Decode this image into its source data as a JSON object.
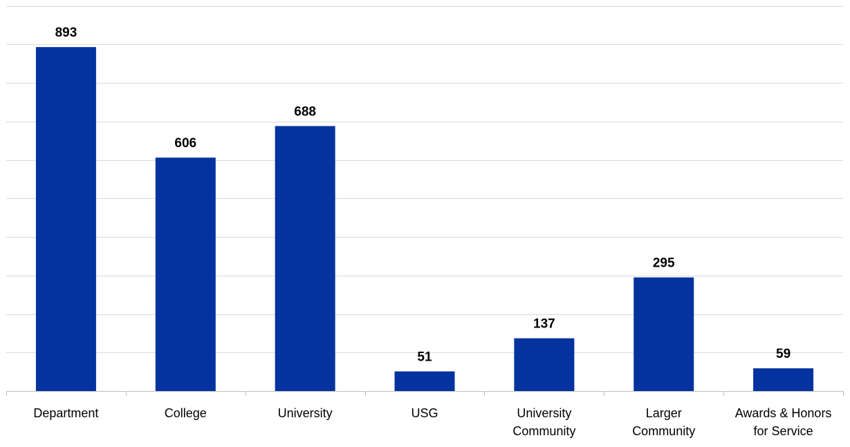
{
  "chart_data": {
    "type": "bar",
    "categories": [
      [
        "Department"
      ],
      [
        "College"
      ],
      [
        "University"
      ],
      [
        "USG"
      ],
      [
        "University",
        "Community"
      ],
      [
        "Larger",
        "Community"
      ],
      [
        "Awards & Honors",
        "for Service"
      ]
    ],
    "values": [
      893,
      606,
      688,
      51,
      137,
      295,
      59
    ],
    "data_labels": [
      "893",
      "606",
      "688",
      "51",
      "137",
      "295",
      "59"
    ],
    "ylim": [
      0,
      1000
    ],
    "grid": true,
    "legend": "none",
    "colors": {
      "bar": "#0433A0",
      "grid": "#D9D9D9",
      "axis": "#BFBFBF",
      "text": "#000000"
    }
  }
}
